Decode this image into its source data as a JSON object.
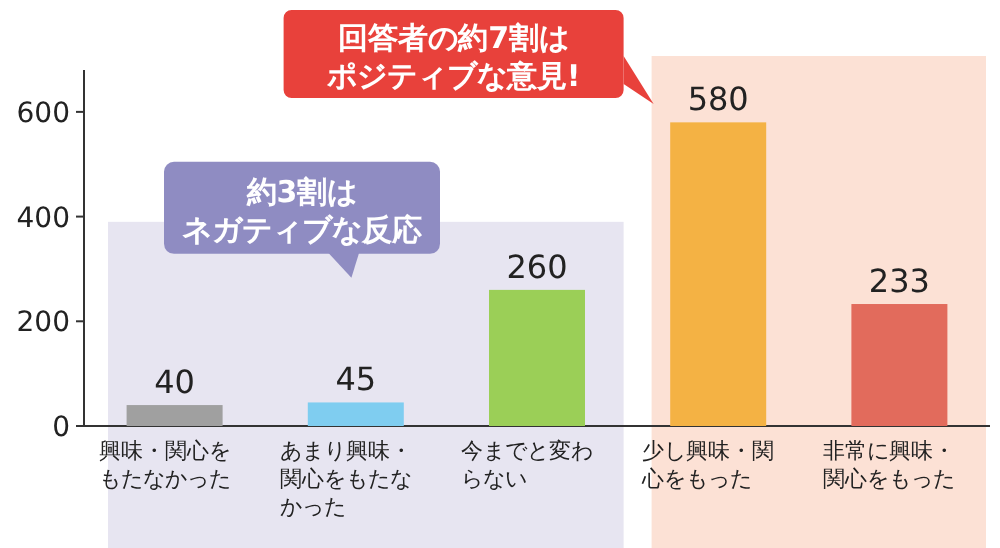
{
  "chart_data": {
    "type": "bar",
    "categories": [
      "興味・関心をもたなかった",
      "あまり興味・関心をもたなかった",
      "今までと変わらない",
      "少し興味・関心をもった",
      "非常に興味・関心をもった"
    ],
    "values": [
      40,
      45,
      260,
      580,
      233
    ],
    "colors": [
      "#a0a0a0",
      "#7fcdf0",
      "#9bcf57",
      "#f4b244",
      "#e26b5c"
    ],
    "data_labels": true,
    "ylim": [
      0,
      680
    ],
    "yticks": [
      0,
      200,
      400,
      600
    ],
    "bands": [
      {
        "axis": "x",
        "from": "興味・関心をもたなかった",
        "to": "今までと変わらない",
        "label": "約3割はネガティブな反応",
        "color": "#e7e5f1"
      },
      {
        "axis": "x",
        "from": "少し興味・関心をもった",
        "to": "非常に興味・関心をもった",
        "label": "回答者の約7割はポジティブな意見!",
        "color": "#fce1d5"
      }
    ]
  }
}
